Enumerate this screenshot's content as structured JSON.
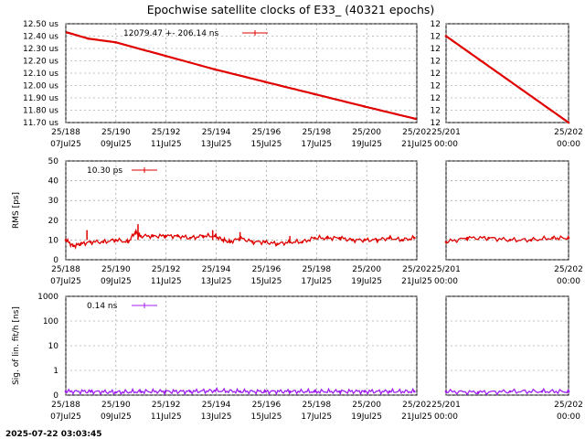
{
  "title": "Epochwise satellite clocks of E33_ (40321 epochs)",
  "timestamp": "2025-07-22 03:03:45",
  "colors": {
    "red": "#e00000",
    "purple": "#a020f0"
  },
  "chart_data": [
    {
      "type": "line",
      "name": "clock",
      "ylabel": "",
      "y_tick_labels": [
        "11.70 us",
        "11.80 us",
        "11.90 us",
        "12.00 us",
        "12.10 us",
        "12.20 us",
        "12.30 us",
        "12.40 us",
        "12.50 us"
      ],
      "ylim": [
        11.7,
        12.5
      ],
      "legend": {
        "text": "12079.47 +-    206.14 ns",
        "position": "top-center"
      },
      "x_tick_labels": [
        "25/188\n07Jul25",
        "25/190\n09Jul25",
        "25/192\n11Jul25",
        "25/194\n13Jul25",
        "25/196\n15Jul25",
        "25/198\n17Jul25",
        "25/200\n19Jul25",
        "25/202\n21Jul25"
      ],
      "xlim_days": [
        188,
        202.1
      ],
      "grid": true,
      "series": [
        {
          "color": "red",
          "x": [
            188.05,
            188.9,
            190,
            192,
            194,
            196,
            198,
            200,
            202.05
          ],
          "y": [
            12.43,
            12.38,
            12.35,
            12.24,
            12.13,
            12.03,
            11.93,
            11.83,
            11.73
          ]
        }
      ],
      "side_panel": {
        "y_tick_labels": [
          "12",
          "12",
          "12",
          "12",
          "12",
          "12",
          "12",
          "12",
          "12"
        ],
        "x_tick_labels": [
          "25/201\n00:00",
          "25/202\n00:00"
        ],
        "xlim_days": [
          200.9,
          202.05
        ],
        "series": [
          {
            "color": "red",
            "x": [
              200.9,
              202.05
            ],
            "y": [
              12.4,
              11.7
            ]
          }
        ]
      }
    },
    {
      "type": "line",
      "name": "rms",
      "ylabel": "RMS [ps]",
      "y_tick_labels": [
        "0",
        "10",
        "20",
        "30",
        "40",
        "50"
      ],
      "ylim": [
        0,
        50
      ],
      "legend": {
        "text": "10.30 ps",
        "position": "top-left"
      },
      "x_tick_labels": [
        "25/188\n07Jul25",
        "25/190\n09Jul25",
        "25/192\n11Jul25",
        "25/194\n13Jul25",
        "25/196\n15Jul25",
        "25/198\n17Jul25",
        "25/200\n19Jul25",
        "25/202\n21Jul25"
      ],
      "xlim_days": [
        188,
        202.1
      ],
      "grid": true,
      "series": [
        {
          "color": "red",
          "x": [
            188,
            188.3,
            188.6,
            189,
            189.5,
            190,
            190.5,
            190.8,
            191,
            191.5,
            192,
            192.5,
            193,
            193.5,
            194,
            194.3,
            194.6,
            195,
            195.5,
            196,
            196.5,
            197,
            197.5,
            198,
            198.5,
            199,
            199.5,
            200,
            200.5,
            201,
            201.5,
            202
          ],
          "y": [
            10,
            7,
            8,
            9,
            9,
            10,
            9,
            14,
            12,
            12,
            12,
            12,
            11,
            12,
            12,
            10,
            9,
            11,
            9,
            9,
            8,
            9,
            9,
            11,
            11,
            11,
            10,
            10,
            10,
            11,
            10,
            11
          ]
        }
      ],
      "spikes": [
        {
          "x": 188.85,
          "y": 15
        },
        {
          "x": 190.9,
          "y": 18
        },
        {
          "x": 193.9,
          "y": 15
        },
        {
          "x": 195.0,
          "y": 14
        },
        {
          "x": 197.0,
          "y": 12
        }
      ],
      "side_panel": {
        "y_tick_labels": [],
        "x_tick_labels": [
          "25/201\n00:00",
          "25/202\n00:00"
        ],
        "xlim_days": [
          200.9,
          202.05
        ],
        "series": [
          {
            "color": "red",
            "x": [
              200.9,
              201.1,
              201.3,
              201.5,
              201.7,
              201.9,
              202.05
            ],
            "y": [
              9,
              11,
              11,
              10,
              10,
              11,
              11
            ]
          }
        ]
      }
    },
    {
      "type": "line",
      "name": "sigma",
      "ylabel": "Sig. of lin. fit/h [ns]",
      "y_tick_labels": [
        "0",
        "1",
        "10",
        "100",
        "1000"
      ],
      "yscale": "log",
      "legend": {
        "text": "0.14 ns",
        "position": "top-left"
      },
      "x_tick_labels": [
        "25/188\n07Jul25",
        "25/190\n09Jul25",
        "25/192\n11Jul25",
        "25/194\n13Jul25",
        "25/196\n15Jul25",
        "25/198\n17Jul25",
        "25/200\n19Jul25",
        "25/202\n21Jul25"
      ],
      "xlim_days": [
        188,
        202.1
      ],
      "grid": true,
      "series": [
        {
          "color": "purple",
          "x": [
            188,
            189,
            190,
            191,
            192,
            193,
            194,
            195,
            196,
            197,
            198,
            199,
            200,
            201,
            202
          ],
          "y": [
            0.14,
            0.14,
            0.13,
            0.14,
            0.14,
            0.14,
            0.15,
            0.14,
            0.14,
            0.14,
            0.14,
            0.14,
            0.14,
            0.14,
            0.14
          ]
        }
      ],
      "side_panel": {
        "y_tick_labels": [],
        "x_tick_labels": [
          "25/201\n00:00",
          "25/202\n00:00"
        ],
        "xlim_days": [
          200.9,
          202.05
        ],
        "series": [
          {
            "color": "purple",
            "x": [
              200.9,
              201.2,
              201.5,
              201.8,
              202.05
            ],
            "y": [
              0.14,
              0.13,
              0.14,
              0.14,
              0.14
            ]
          }
        ]
      }
    }
  ]
}
